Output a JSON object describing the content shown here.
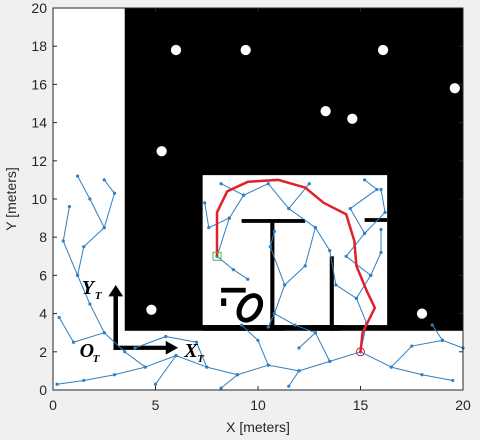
{
  "chart_data": {
    "type": "line",
    "xlabel": "X [meters]",
    "ylabel": "Y [meters]",
    "xlim": [
      0,
      20
    ],
    "ylim": [
      0,
      20
    ],
    "xticks": [
      0,
      5,
      10,
      15,
      20
    ],
    "yticks": [
      0,
      2,
      4,
      6,
      8,
      10,
      12,
      14,
      16,
      18,
      20
    ],
    "series": [
      {
        "color": "#2f7fc1",
        "marker": "dot",
        "x": [
          15,
          13.5,
          12,
          10.5,
          9,
          7.5,
          6,
          4.5,
          3,
          1.5,
          0.2,
          null,
          15,
          16.5,
          18,
          19.5,
          null,
          16.5,
          17.5,
          19,
          20,
          null,
          13.5,
          12.8,
          12,
          null,
          10.5,
          10,
          9.2,
          null,
          7.5,
          7,
          5.5,
          4,
          null,
          4.5,
          3.5,
          2.5,
          1.8,
          1.2,
          1.5,
          2.5,
          3,
          2.5,
          null,
          1.2,
          0.5,
          0.8,
          null,
          2.5,
          1,
          0.3,
          null,
          2.5,
          1.8,
          1.2,
          null,
          6,
          5,
          null,
          9,
          8.2,
          null,
          12,
          11.5,
          null,
          15,
          15.3,
          14.8,
          15.5,
          14.3,
          15.2,
          14.5,
          15.8,
          15.2,
          null,
          14.8,
          13.8,
          13.5,
          12.8,
          11.5,
          10.5,
          9.3,
          8.2,
          null,
          15.5,
          16,
          16,
          null,
          12.8,
          12.3,
          11.3,
          10.8,
          10.5,
          null,
          11.3,
          10.6,
          10.8,
          null,
          9.3,
          8.6,
          8,
          8.8,
          9.5,
          null,
          8.6,
          7.6,
          7.4,
          null,
          11.5,
          12.5,
          null,
          15.2,
          16.2,
          16,
          null,
          10.8,
          11.8,
          12.8,
          null,
          19,
          18.5
        ],
        "y": [
          2,
          1.5,
          1,
          1.3,
          0.8,
          1.2,
          1.8,
          1.2,
          0.8,
          0.5,
          0.3,
          null,
          2,
          1.2,
          0.8,
          0.5,
          null,
          1.2,
          2.3,
          2.6,
          2.2,
          null,
          1.5,
          3,
          2.2,
          null,
          1.3,
          2.6,
          3.4,
          null,
          1.2,
          2.5,
          2.8,
          2.2,
          null,
          1.2,
          2,
          3,
          4.5,
          6,
          7.5,
          8.5,
          10.3,
          11,
          null,
          6,
          7.8,
          9.6,
          null,
          3,
          2.5,
          3.8,
          null,
          8.5,
          10,
          11.2,
          null,
          1.8,
          0.3,
          null,
          0.8,
          0.1,
          null,
          1,
          0.2,
          null,
          2,
          3.5,
          4.8,
          6,
          7,
          8.2,
          9.5,
          10.5,
          11,
          null,
          4.8,
          5.5,
          7.3,
          8.5,
          9.5,
          10.8,
          10.2,
          10.8,
          null,
          6,
          7.2,
          8.4,
          null,
          8.5,
          6.5,
          5.5,
          4,
          3.3,
          null,
          5.5,
          7.5,
          8.3,
          null,
          10.2,
          9,
          7,
          6.3,
          5.8,
          null,
          9,
          8.5,
          9.8,
          null,
          9.5,
          10.8,
          null,
          8.2,
          9.3,
          10.5,
          null,
          4,
          3.4,
          3,
          null,
          2.6,
          3.4
        ]
      },
      {
        "color": "#e0202a",
        "marker": "none",
        "x": [
          15,
          15.1,
          15.7,
          15.3,
          14.8,
          14.7,
          14.3,
          13.2,
          12.3,
          11,
          9.5,
          8.5,
          8,
          8
        ],
        "y": [
          2,
          3,
          4.3,
          5.2,
          6.5,
          7.8,
          9.2,
          9.8,
          10.6,
          11,
          10.9,
          10.4,
          9.3,
          7
        ]
      },
      {
        "color": "#e0202a",
        "marker": "circle",
        "x": [
          15
        ],
        "y": [
          2
        ]
      },
      {
        "color": "#40c040",
        "marker": "square",
        "x": [
          8
        ],
        "y": [
          7
        ]
      }
    ],
    "annotations": [
      {
        "text": "Y",
        "subscript": "T"
      },
      {
        "text": "O",
        "subscript": "T"
      },
      {
        "text": "X",
        "subscript": "T"
      }
    ]
  }
}
